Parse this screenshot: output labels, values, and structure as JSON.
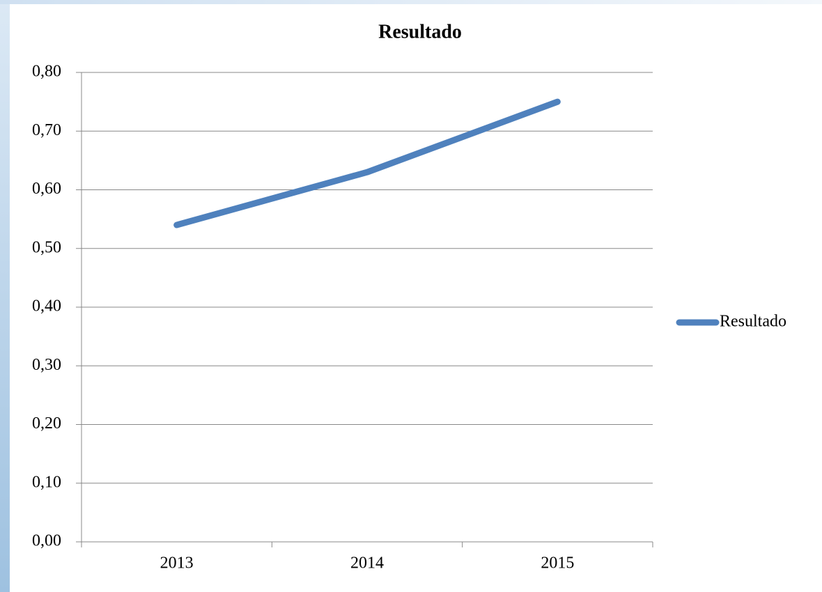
{
  "chart_data": {
    "type": "line",
    "title": "Resultado",
    "categories": [
      "2013",
      "2014",
      "2015"
    ],
    "series": [
      {
        "name": "Resultado",
        "color": "#4f81bd",
        "values": [
          0.54,
          0.63,
          0.75
        ]
      }
    ],
    "ylim": [
      0,
      0.8
    ],
    "yticks": [
      {
        "value": 0,
        "label": "0,00"
      },
      {
        "value": 0.1,
        "label": "0,10"
      },
      {
        "value": 0.2,
        "label": "0,20"
      },
      {
        "value": 0.3,
        "label": "0,30"
      },
      {
        "value": 0.4,
        "label": "0,40"
      },
      {
        "value": 0.5,
        "label": "0,50"
      },
      {
        "value": 0.6,
        "label": "0,60"
      },
      {
        "value": 0.7,
        "label": "0,70"
      },
      {
        "value": 0.8,
        "label": "0,80"
      }
    ],
    "grid": true,
    "legend": "right"
  }
}
